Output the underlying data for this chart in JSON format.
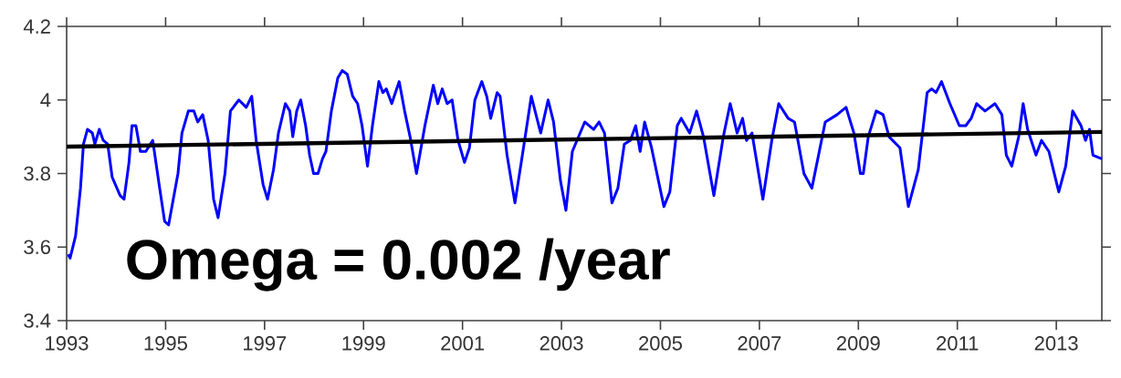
{
  "chart_data": {
    "type": "line",
    "xlim": [
      1993,
      2013.92
    ],
    "ylim": [
      3.4,
      4.2
    ],
    "xticks": [
      1993,
      1995,
      1997,
      1999,
      2001,
      2003,
      2005,
      2007,
      2009,
      2011,
      2013
    ],
    "yticks": [
      3.4,
      3.6,
      3.8,
      4,
      4.2
    ],
    "annotations": [
      "Omega  = 0.002 /year"
    ],
    "series": [
      {
        "color": "#0000ff",
        "x": [
          1993.03,
          1993.07,
          1993.18,
          1993.28,
          1993.34,
          1993.42,
          1993.52,
          1993.57,
          1993.66,
          1993.74,
          1993.83,
          1993.92,
          1994.08,
          1994.16,
          1994.26,
          1994.32,
          1994.4,
          1994.49,
          1994.6,
          1994.74,
          1994.88,
          1994.98,
          1995.06,
          1995.25,
          1995.33,
          1995.46,
          1995.57,
          1995.65,
          1995.75,
          1995.86,
          1995.97,
          1996.06,
          1996.2,
          1996.31,
          1996.48,
          1996.63,
          1996.74,
          1996.83,
          1996.97,
          1997.06,
          1997.18,
          1997.28,
          1997.42,
          1997.51,
          1997.57,
          1997.65,
          1997.73,
          1997.83,
          1997.91,
          1997.99,
          1998.08,
          1998.17,
          1998.24,
          1998.35,
          1998.48,
          1998.57,
          1998.67,
          1998.78,
          1998.88,
          1998.97,
          1999.08,
          1999.18,
          1999.31,
          1999.39,
          1999.46,
          1999.57,
          1999.72,
          1999.83,
          1999.94,
          2000.07,
          2000.24,
          2000.41,
          2000.5,
          2000.59,
          2000.69,
          2000.79,
          2000.91,
          2001.04,
          2001.14,
          2001.25,
          2001.39,
          2001.49,
          2001.57,
          2001.7,
          2001.76,
          2001.9,
          2002.06,
          2002.21,
          2002.39,
          2002.58,
          2002.73,
          2002.84,
          2002.98,
          2003.09,
          2003.22,
          2003.47,
          2003.65,
          2003.76,
          2003.87,
          2004.02,
          2004.14,
          2004.27,
          2004.39,
          2004.5,
          2004.59,
          2004.68,
          2004.82,
          2005.07,
          2005.19,
          2005.34,
          2005.42,
          2005.59,
          2005.73,
          2005.87,
          2006.08,
          2006.27,
          2006.41,
          2006.55,
          2006.66,
          2006.74,
          2006.85,
          2007.07,
          2007.25,
          2007.39,
          2007.58,
          2007.71,
          2007.9,
          2008.06,
          2008.33,
          2008.57,
          2008.75,
          2008.91,
          2009.04,
          2009.1,
          2009.2,
          2009.36,
          2009.5,
          2009.62,
          2009.84,
          2010.01,
          2010.21,
          2010.39,
          2010.48,
          2010.57,
          2010.68,
          2010.85,
          2011.04,
          2011.17,
          2011.28,
          2011.39,
          2011.56,
          2011.76,
          2011.9,
          2011.99,
          2012.1,
          2012.24,
          2012.33,
          2012.42,
          2012.59,
          2012.7,
          2012.85,
          2012.94,
          2013.05,
          2013.19,
          2013.33,
          2013.5,
          2013.59,
          2013.67,
          2013.74,
          2013.92
        ],
        "values": [
          3.58,
          3.57,
          3.63,
          3.76,
          3.88,
          3.92,
          3.91,
          3.88,
          3.92,
          3.89,
          3.88,
          3.79,
          3.74,
          3.73,
          3.83,
          3.93,
          3.93,
          3.86,
          3.86,
          3.89,
          3.76,
          3.67,
          3.66,
          3.8,
          3.91,
          3.97,
          3.97,
          3.94,
          3.96,
          3.89,
          3.73,
          3.68,
          3.8,
          3.97,
          4.0,
          3.98,
          4.01,
          3.89,
          3.77,
          3.73,
          3.81,
          3.91,
          3.99,
          3.97,
          3.9,
          3.97,
          4.0,
          3.93,
          3.85,
          3.8,
          3.8,
          3.84,
          3.86,
          3.97,
          4.06,
          4.08,
          4.07,
          4.01,
          3.99,
          3.93,
          3.82,
          3.93,
          4.05,
          4.02,
          4.03,
          3.99,
          4.05,
          3.97,
          3.9,
          3.8,
          3.93,
          4.04,
          3.99,
          4.03,
          3.99,
          4.0,
          3.89,
          3.83,
          3.87,
          4.0,
          4.05,
          4.01,
          3.95,
          4.02,
          4.01,
          3.85,
          3.72,
          3.85,
          4.01,
          3.91,
          4.0,
          3.94,
          3.78,
          3.7,
          3.86,
          3.94,
          3.92,
          3.94,
          3.91,
          3.72,
          3.76,
          3.88,
          3.89,
          3.93,
          3.86,
          3.94,
          3.87,
          3.71,
          3.75,
          3.93,
          3.95,
          3.91,
          3.97,
          3.9,
          3.74,
          3.9,
          3.99,
          3.91,
          3.95,
          3.89,
          3.91,
          3.73,
          3.89,
          3.99,
          3.95,
          3.94,
          3.8,
          3.76,
          3.94,
          3.96,
          3.98,
          3.91,
          3.8,
          3.8,
          3.9,
          3.97,
          3.96,
          3.9,
          3.87,
          3.71,
          3.81,
          4.02,
          4.03,
          4.02,
          4.05,
          3.99,
          3.93,
          3.93,
          3.95,
          3.99,
          3.97,
          3.99,
          3.96,
          3.85,
          3.82,
          3.9,
          3.99,
          3.92,
          3.85,
          3.89,
          3.86,
          3.81,
          3.75,
          3.82,
          3.97,
          3.93,
          3.89,
          3.92,
          3.85,
          3.84
        ]
      },
      {
        "color": "#000000",
        "x": [
          1993,
          2013.92
        ],
        "values": [
          3.873,
          3.913
        ]
      }
    ]
  }
}
